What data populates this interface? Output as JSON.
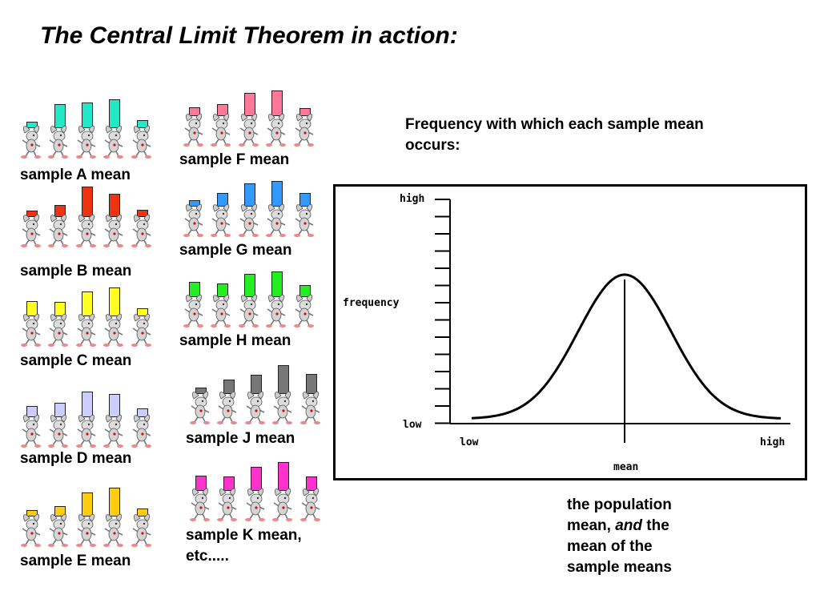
{
  "title": "The Central Limit Theorem in action:",
  "samples": [
    {
      "id": "A",
      "label": "sample A mean",
      "color": "#22e8c8",
      "values": [
        0.22,
        0.78,
        0.83,
        0.95,
        0.27
      ]
    },
    {
      "id": "B",
      "label": "sample B mean",
      "color": "#ee3311",
      "values": [
        0.2,
        0.4,
        1.0,
        0.76,
        0.24
      ]
    },
    {
      "id": "C",
      "label": "sample C mean",
      "color": "#ffff22",
      "values": [
        0.5,
        0.48,
        0.82,
        0.95,
        0.26
      ]
    },
    {
      "id": "D",
      "label": "sample D mean",
      "color": "#ccccff",
      "values": [
        0.38,
        0.48,
        0.83,
        0.75,
        0.28
      ]
    },
    {
      "id": "E",
      "label": "sample E mean",
      "color": "#ffcc11",
      "values": [
        0.2,
        0.35,
        0.78,
        0.95,
        0.25
      ]
    },
    {
      "id": "F",
      "label": "sample F mean",
      "color": "#ff7799",
      "values": [
        0.28,
        0.4,
        0.76,
        0.85,
        0.25
      ]
    },
    {
      "id": "G",
      "label": "sample G mean",
      "color": "#3399ff",
      "values": [
        0.2,
        0.45,
        0.75,
        0.85,
        0.45
      ]
    },
    {
      "id": "H",
      "label": "sample H mean",
      "color": "#22ee22",
      "values": [
        0.5,
        0.45,
        0.75,
        0.85,
        0.4
      ]
    },
    {
      "id": "J",
      "label": "sample J mean",
      "color": "#777777",
      "values": [
        0.2,
        0.47,
        0.62,
        0.95,
        0.66
      ]
    },
    {
      "id": "K",
      "label": "sample K mean,",
      "label_line2": "etc.....",
      "color": "#ff33cc",
      "values": [
        0.5,
        0.47,
        0.8,
        0.95,
        0.48
      ]
    }
  ],
  "frequency_note": {
    "line1": "Frequency with which each sample mean",
    "line2": "occurs:"
  },
  "graph": {
    "y_high": "high",
    "y_label": "frequency",
    "y_low": "low",
    "x_low": "low",
    "x_high": "high",
    "x_mean": "mean"
  },
  "population_note": {
    "line1": "the population",
    "line2_prefix": "mean, ",
    "line2_emph": "and",
    "line2_suffix": " the",
    "line3": "mean of the",
    "line4": "sample means"
  },
  "icons": {
    "figure": "rabbit-runner-icon"
  }
}
